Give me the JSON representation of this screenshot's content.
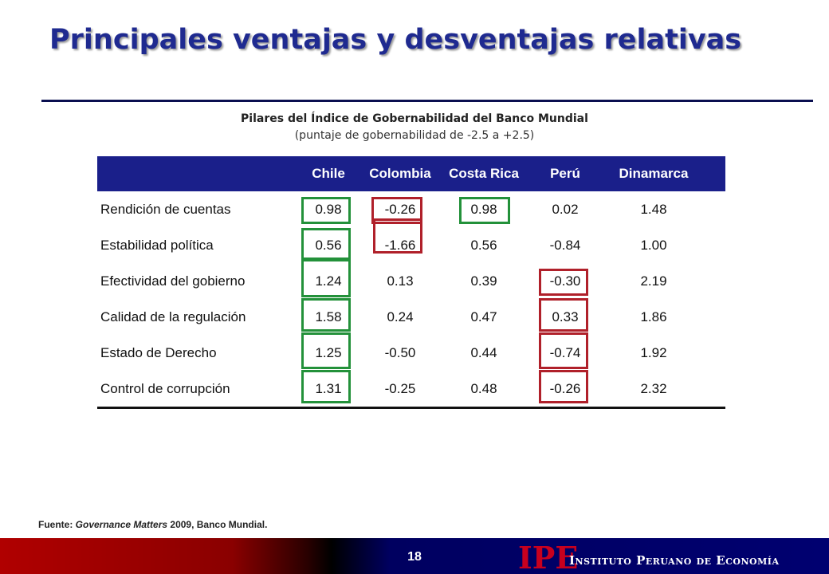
{
  "slide": {
    "title": "Principales ventajas y desventajas relativas",
    "subtitle": "Pilares del Índice de Gobernabilidad del Banco Mundial",
    "subtitle_note": "(puntaje de gobernabilidad  de -2.5 a +2.5)",
    "page_number": "18"
  },
  "table": {
    "columns": [
      "Chile",
      "Colombia",
      "Costa Rica",
      "Perú",
      "Dinamarca"
    ],
    "rows": [
      {
        "label": "Rendición de cuentas",
        "values": [
          "0.98",
          "-0.26",
          "0.98",
          "0.02",
          "1.48"
        ],
        "highlights": [
          "green",
          "red",
          "green",
          "",
          ""
        ]
      },
      {
        "label": "Estabilidad política",
        "values": [
          "0.56",
          "-1.66",
          "0.56",
          "-0.84",
          "1.00"
        ],
        "highlights": [
          "green",
          "red",
          "",
          "",
          ""
        ]
      },
      {
        "label": "Efectividad del gobierno",
        "values": [
          "1.24",
          "0.13",
          "0.39",
          "-0.30",
          "2.19"
        ],
        "highlights": [
          "green",
          "",
          "",
          "red",
          ""
        ]
      },
      {
        "label": "Calidad de la regulación",
        "values": [
          "1.58",
          "0.24",
          "0.47",
          "0.33",
          "1.86"
        ],
        "highlights": [
          "green",
          "",
          "",
          "red",
          ""
        ]
      },
      {
        "label": "Estado de Derecho",
        "values": [
          "1.25",
          "-0.50",
          "0.44",
          "-0.74",
          "1.92"
        ],
        "highlights": [
          "green",
          "",
          "",
          "red",
          ""
        ]
      },
      {
        "label": "Control de corrupción",
        "values": [
          "1.31",
          "-0.25",
          "0.48",
          "-0.26",
          "2.32"
        ],
        "highlights": [
          "green",
          "",
          "",
          "red",
          ""
        ]
      }
    ]
  },
  "source": {
    "prefix": "Fuente: ",
    "work": "Governance Matters",
    "suffix": " 2009, Banco Mundial."
  },
  "footer": {
    "logo": "IPE",
    "institution": "Instituto Peruano de Economía"
  },
  "colors": {
    "title": "#1f2a90",
    "header_bg": "#1a1f8a",
    "advantage_box": "#23913a",
    "disadvantage_box": "#b0202a"
  }
}
